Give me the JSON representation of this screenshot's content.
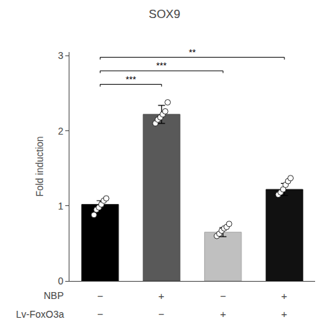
{
  "chart_data": {
    "type": "bar",
    "title": "SOX9",
    "ylabel": "Fold induction",
    "values": [
      1.02,
      2.22,
      0.65,
      1.22
    ],
    "errors": [
      0.05,
      0.12,
      0.06,
      0.08
    ],
    "colors": [
      "#000000",
      "#595959",
      "#c0c0c0",
      "#111111"
    ],
    "edge_colors": [
      "#000000",
      "#444444",
      "#999999",
      "#000000"
    ],
    "points": [
      [
        0.88,
        0.95,
        0.98,
        1.02,
        1.07,
        1.1
      ],
      [
        2.1,
        2.15,
        2.18,
        2.22,
        2.26,
        2.38
      ],
      [
        0.6,
        0.63,
        0.67,
        0.7,
        0.72,
        0.76
      ],
      [
        1.15,
        1.18,
        1.22,
        1.28,
        1.33,
        1.37
      ]
    ],
    "x_label_rows": [
      {
        "name": "NBP",
        "labels": [
          "−",
          "+",
          "−",
          "+"
        ]
      },
      {
        "name": "Lv-FoxO3a",
        "labels": [
          "−",
          "−",
          "+",
          "+"
        ]
      }
    ],
    "brackets": [
      {
        "from": 0,
        "to": 1,
        "y": 2.62,
        "label": "***"
      },
      {
        "from": 0,
        "to": 2,
        "y": 2.8,
        "label": "***"
      },
      {
        "from": 0,
        "to": 3,
        "y": 2.98,
        "label": "**"
      }
    ],
    "ylim": [
      0,
      3.05
    ],
    "yticks": [
      0,
      1,
      2,
      3
    ],
    "grid": false
  }
}
